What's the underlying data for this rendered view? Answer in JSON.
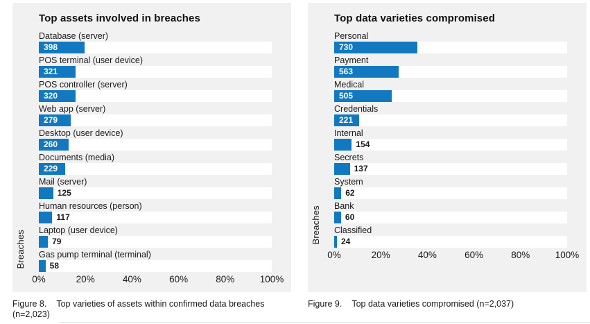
{
  "colors": {
    "bar": "#1278bf",
    "panel_bg": "#f1f1f1",
    "track_bg": "#ffffff",
    "text": "#1a1a1a",
    "value_inside_text": "#ffffff"
  },
  "chart_data": [
    {
      "type": "bar",
      "orientation": "horizontal",
      "title": "Top assets involved in breaches",
      "ylabel": "Breaches",
      "xlabel": "",
      "n": 2023,
      "categories": [
        "Database (server)",
        "POS terminal (user device)",
        "POS controller (server)",
        "Web app (server)",
        "Desktop (user device)",
        "Documents (media)",
        "Mail (server)",
        "Human resources (person)",
        "Laptop (user device)",
        "Gas pump terminal (terminal)"
      ],
      "values": [
        398,
        321,
        320,
        279,
        260,
        229,
        125,
        117,
        79,
        58
      ],
      "xlim": [
        0,
        100
      ],
      "x_tick_labels": [
        "0%",
        "20%",
        "40%",
        "60%",
        "80%",
        "100%"
      ],
      "grid": false,
      "legend": false,
      "caption_label": "Figure 8.",
      "caption_text": "Top varieties of assets within confirmed data breaches (n=2,023)"
    },
    {
      "type": "bar",
      "orientation": "horizontal",
      "title": "Top data varieties compromised",
      "ylabel": "Breaches",
      "xlabel": "",
      "n": 2037,
      "categories": [
        "Personal",
        "Payment",
        "Medical",
        "Credentials",
        "Internal",
        "Secrets",
        "System",
        "Bank",
        "Classified"
      ],
      "values": [
        730,
        563,
        505,
        221,
        154,
        137,
        62,
        60,
        24
      ],
      "xlim": [
        0,
        100
      ],
      "x_tick_labels": [
        "0%",
        "20%",
        "40%",
        "60%",
        "80%",
        "100%"
      ],
      "grid": false,
      "legend": false,
      "caption_label": "Figure 9.",
      "caption_text": "Top data varieties compromised (n=2,037)"
    }
  ]
}
